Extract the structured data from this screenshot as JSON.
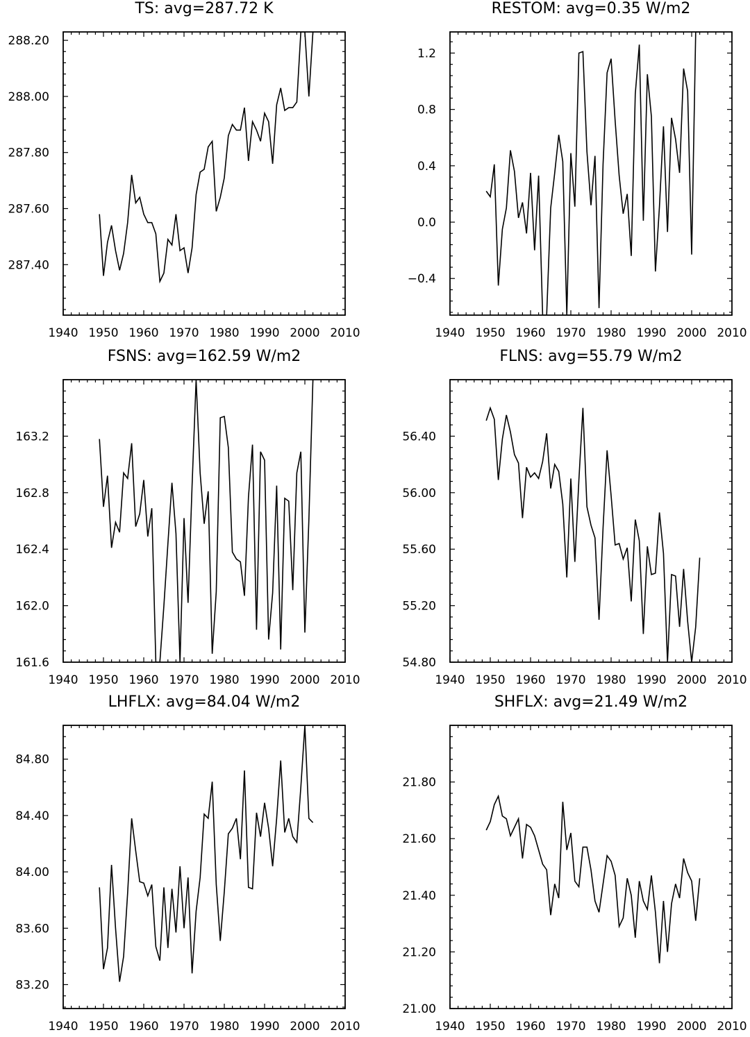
{
  "chart_data": [
    {
      "type": "line",
      "title": "TS: avg=287.72 K",
      "xlim": [
        1940,
        2010
      ],
      "xticks": [
        1940,
        1950,
        1960,
        1970,
        1980,
        1990,
        2000,
        2010
      ],
      "xtick_labels": [
        "1940",
        "1950",
        "1960",
        "1970",
        "1980",
        "1990",
        "2000",
        "2010"
      ],
      "ylim": [
        287.22,
        288.23
      ],
      "yticks": [
        287.4,
        287.6,
        287.8,
        288.0,
        288.2
      ],
      "ytick_labels": [
        "287.40",
        "287.60",
        "287.80",
        "288.00",
        "288.20"
      ],
      "x": [
        1949,
        1950,
        1951,
        1952,
        1953,
        1954,
        1955,
        1956,
        1957,
        1958,
        1959,
        1960,
        1961,
        1962,
        1963,
        1964,
        1965,
        1966,
        1967,
        1968,
        1969,
        1970,
        1971,
        1972,
        1973,
        1974,
        1975,
        1976,
        1977,
        1978,
        1979,
        1980,
        1981,
        1982,
        1983,
        1984,
        1985,
        1986,
        1987,
        1988,
        1989,
        1990,
        1991,
        1992,
        1993,
        1994,
        1995,
        1996,
        1997,
        1998,
        1999,
        2000,
        2001,
        2002
      ],
      "values": [
        287.58,
        287.36,
        287.48,
        287.54,
        287.45,
        287.38,
        287.44,
        287.55,
        287.72,
        287.62,
        287.64,
        287.58,
        287.55,
        287.55,
        287.51,
        287.34,
        287.37,
        287.49,
        287.47,
        287.58,
        287.45,
        287.46,
        287.37,
        287.46,
        287.65,
        287.73,
        287.74,
        287.82,
        287.84,
        287.59,
        287.64,
        287.71,
        287.86,
        287.9,
        287.88,
        287.88,
        287.96,
        287.77,
        287.91,
        287.88,
        287.84,
        287.94,
        287.91,
        287.76,
        287.97,
        288.03,
        287.95,
        287.96,
        287.96,
        287.98,
        288.23,
        288.23,
        288.0,
        288.23
      ]
    },
    {
      "type": "line",
      "title": "RESTOM: avg=0.35 W/m2",
      "xlim": [
        1940,
        2010
      ],
      "xticks": [
        1940,
        1950,
        1960,
        1970,
        1980,
        1990,
        2000,
        2010
      ],
      "xtick_labels": [
        "1940",
        "1950",
        "1960",
        "1970",
        "1980",
        "1990",
        "2000",
        "2010"
      ],
      "ylim": [
        -0.66,
        1.35
      ],
      "yticks": [
        -0.4,
        0.0,
        0.4,
        0.8,
        1.2
      ],
      "ytick_labels": [
        "-0.4",
        "0.0",
        "0.4",
        "0.8",
        "1.2"
      ],
      "x": [
        1949,
        1950,
        1951,
        1952,
        1953,
        1954,
        1955,
        1956,
        1957,
        1958,
        1959,
        1960,
        1961,
        1962,
        1963,
        1964,
        1965,
        1966,
        1967,
        1968,
        1969,
        1970,
        1971,
        1972,
        1973,
        1974,
        1975,
        1976,
        1977,
        1978,
        1979,
        1980,
        1981,
        1982,
        1983,
        1984,
        1985,
        1986,
        1987,
        1988,
        1989,
        1990,
        1991,
        1992,
        1993,
        1994,
        1995,
        1996,
        1997,
        1998,
        1999,
        2000,
        2001,
        2002
      ],
      "values": [
        0.22,
        0.18,
        0.41,
        -0.45,
        -0.05,
        0.1,
        0.51,
        0.36,
        0.03,
        0.14,
        -0.08,
        0.35,
        -0.2,
        0.33,
        -0.66,
        -0.66,
        0.1,
        0.35,
        0.62,
        0.43,
        -0.66,
        0.49,
        0.11,
        1.2,
        1.21,
        0.5,
        0.12,
        0.47,
        -0.61,
        0.41,
        1.06,
        1.16,
        0.72,
        0.33,
        0.06,
        0.2,
        -0.24,
        0.91,
        1.26,
        0.01,
        1.05,
        0.75,
        -0.35,
        0.11,
        0.68,
        -0.07,
        0.74,
        0.59,
        0.35,
        1.09,
        0.93,
        -0.23,
        1.35,
        1.35
      ]
    },
    {
      "type": "line",
      "title": "FSNS: avg=162.59 W/m2",
      "xlim": [
        1940,
        2010
      ],
      "xticks": [
        1940,
        1950,
        1960,
        1970,
        1980,
        1990,
        2000,
        2010
      ],
      "xtick_labels": [
        "1940",
        "1950",
        "1960",
        "1970",
        "1980",
        "1990",
        "2000",
        "2010"
      ],
      "ylim": [
        161.6,
        163.6
      ],
      "yticks": [
        161.6,
        162.0,
        162.4,
        162.8,
        163.2
      ],
      "ytick_labels": [
        "161.6",
        "162.0",
        "162.4",
        "162.8",
        "163.2"
      ],
      "x": [
        1949,
        1950,
        1951,
        1952,
        1953,
        1954,
        1955,
        1956,
        1957,
        1958,
        1959,
        1960,
        1961,
        1962,
        1963,
        1964,
        1965,
        1966,
        1967,
        1968,
        1969,
        1970,
        1971,
        1972,
        1973,
        1974,
        1975,
        1976,
        1977,
        1978,
        1979,
        1980,
        1981,
        1982,
        1983,
        1984,
        1985,
        1986,
        1987,
        1988,
        1989,
        1990,
        1991,
        1992,
        1993,
        1994,
        1995,
        1996,
        1997,
        1998,
        1999,
        2000,
        2001,
        2002
      ],
      "values": [
        163.18,
        162.7,
        162.92,
        162.41,
        162.59,
        162.52,
        162.94,
        162.9,
        163.15,
        162.56,
        162.65,
        162.89,
        162.49,
        162.69,
        161.6,
        161.6,
        162.0,
        162.44,
        162.87,
        162.51,
        161.6,
        162.62,
        162.02,
        162.85,
        163.6,
        162.94,
        162.58,
        162.81,
        161.66,
        162.1,
        163.33,
        163.34,
        163.12,
        162.38,
        162.33,
        162.31,
        162.07,
        162.77,
        163.14,
        161.83,
        163.09,
        163.03,
        161.76,
        162.09,
        162.85,
        161.69,
        162.76,
        162.74,
        162.11,
        162.94,
        163.09,
        161.81,
        162.61,
        163.6
      ]
    },
    {
      "type": "line",
      "title": "FLNS: avg=55.79 W/m2",
      "xlim": [
        1940,
        2010
      ],
      "xticks": [
        1940,
        1950,
        1960,
        1970,
        1980,
        1990,
        2000,
        2010
      ],
      "xtick_labels": [
        "1940",
        "1950",
        "1960",
        "1970",
        "1980",
        "1990",
        "2000",
        "2010"
      ],
      "ylim": [
        54.8,
        56.8
      ],
      "yticks": [
        54.8,
        55.2,
        55.6,
        56.0,
        56.4
      ],
      "ytick_labels": [
        "54.80",
        "55.20",
        "55.60",
        "56.00",
        "56.40"
      ],
      "x": [
        1949,
        1950,
        1951,
        1952,
        1953,
        1954,
        1955,
        1956,
        1957,
        1958,
        1959,
        1960,
        1961,
        1962,
        1963,
        1964,
        1965,
        1966,
        1967,
        1968,
        1969,
        1970,
        1971,
        1972,
        1973,
        1974,
        1975,
        1976,
        1977,
        1978,
        1979,
        1980,
        1981,
        1982,
        1983,
        1984,
        1985,
        1986,
        1987,
        1988,
        1989,
        1990,
        1991,
        1992,
        1993,
        1994,
        1995,
        1996,
        1997,
        1998,
        1999,
        2000,
        2001,
        2002
      ],
      "values": [
        56.51,
        56.6,
        56.52,
        56.09,
        56.38,
        56.55,
        56.43,
        56.27,
        56.21,
        55.82,
        56.18,
        56.11,
        56.14,
        56.1,
        56.22,
        56.42,
        56.03,
        56.2,
        56.15,
        55.92,
        55.4,
        56.1,
        55.51,
        56.09,
        56.6,
        55.9,
        55.77,
        55.68,
        55.1,
        55.75,
        56.3,
        55.98,
        55.63,
        55.64,
        55.53,
        55.61,
        55.23,
        55.81,
        55.66,
        55.0,
        55.62,
        55.42,
        55.43,
        55.86,
        55.57,
        54.8,
        55.42,
        55.41,
        55.05,
        55.46,
        55.09,
        54.8,
        55.05,
        55.54
      ]
    },
    {
      "type": "line",
      "title": "LHFLX: avg=84.04 W/m2",
      "xlim": [
        1940,
        2010
      ],
      "xticks": [
        1940,
        1950,
        1960,
        1970,
        1980,
        1990,
        2000,
        2010
      ],
      "xtick_labels": [
        "1940",
        "1950",
        "1960",
        "1970",
        "1980",
        "1990",
        "2000",
        "2010"
      ],
      "ylim": [
        83.03,
        85.04
      ],
      "yticks": [
        83.2,
        83.6,
        84.0,
        84.4,
        84.8
      ],
      "ytick_labels": [
        "83.20",
        "83.60",
        "84.00",
        "84.40",
        "84.80"
      ],
      "x": [
        1949,
        1950,
        1951,
        1952,
        1953,
        1954,
        1955,
        1956,
        1957,
        1958,
        1959,
        1960,
        1961,
        1962,
        1963,
        1964,
        1965,
        1966,
        1967,
        1968,
        1969,
        1970,
        1971,
        1972,
        1973,
        1974,
        1975,
        1976,
        1977,
        1978,
        1979,
        1980,
        1981,
        1982,
        1983,
        1984,
        1985,
        1986,
        1987,
        1988,
        1989,
        1990,
        1991,
        1992,
        1993,
        1994,
        1995,
        1996,
        1997,
        1998,
        1999,
        2000,
        2001,
        2002
      ],
      "values": [
        83.89,
        83.31,
        83.46,
        84.05,
        83.6,
        83.22,
        83.4,
        83.85,
        84.38,
        84.15,
        83.93,
        83.92,
        83.83,
        83.91,
        83.47,
        83.37,
        83.89,
        83.46,
        83.88,
        83.57,
        84.04,
        83.6,
        83.96,
        83.28,
        83.72,
        83.96,
        84.41,
        84.38,
        84.64,
        83.91,
        83.51,
        83.86,
        84.27,
        84.31,
        84.38,
        84.09,
        84.72,
        83.89,
        83.88,
        84.42,
        84.25,
        84.49,
        84.31,
        84.04,
        84.38,
        84.79,
        84.28,
        84.38,
        84.25,
        84.21,
        84.6,
        85.04,
        84.38,
        84.35
      ]
    },
    {
      "type": "line",
      "title": "SHFLX: avg=21.49 W/m2",
      "xlim": [
        1940,
        2010
      ],
      "xticks": [
        1940,
        1950,
        1960,
        1970,
        1980,
        1990,
        2000,
        2010
      ],
      "xtick_labels": [
        "1940",
        "1950",
        "1960",
        "1970",
        "1980",
        "1990",
        "2000",
        "2010"
      ],
      "ylim": [
        21.0,
        22.0
      ],
      "yticks": [
        21.0,
        21.2,
        21.4,
        21.6,
        21.8
      ],
      "ytick_labels": [
        "21.00",
        "21.20",
        "21.40",
        "21.60",
        "21.80"
      ],
      "x": [
        1949,
        1950,
        1951,
        1952,
        1953,
        1954,
        1955,
        1956,
        1957,
        1958,
        1959,
        1960,
        1961,
        1962,
        1963,
        1964,
        1965,
        1966,
        1967,
        1968,
        1969,
        1970,
        1971,
        1972,
        1973,
        1974,
        1975,
        1976,
        1977,
        1978,
        1979,
        1980,
        1981,
        1982,
        1983,
        1984,
        1985,
        1986,
        1987,
        1988,
        1989,
        1990,
        1991,
        1992,
        1993,
        1994,
        1995,
        1996,
        1997,
        1998,
        1999,
        2000,
        2001,
        2002
      ],
      "values": [
        21.63,
        21.66,
        21.72,
        21.75,
        21.68,
        21.67,
        21.61,
        21.64,
        21.67,
        21.53,
        21.65,
        21.64,
        21.61,
        21.56,
        21.51,
        21.49,
        21.33,
        21.44,
        21.39,
        21.73,
        21.56,
        21.62,
        21.45,
        21.43,
        21.57,
        21.57,
        21.49,
        21.38,
        21.34,
        21.44,
        21.54,
        21.52,
        21.47,
        21.29,
        21.32,
        21.46,
        21.4,
        21.25,
        21.45,
        21.38,
        21.35,
        21.47,
        21.34,
        21.16,
        21.38,
        21.2,
        21.37,
        21.44,
        21.39,
        21.53,
        21.48,
        21.45,
        21.31,
        21.46
      ]
    }
  ]
}
